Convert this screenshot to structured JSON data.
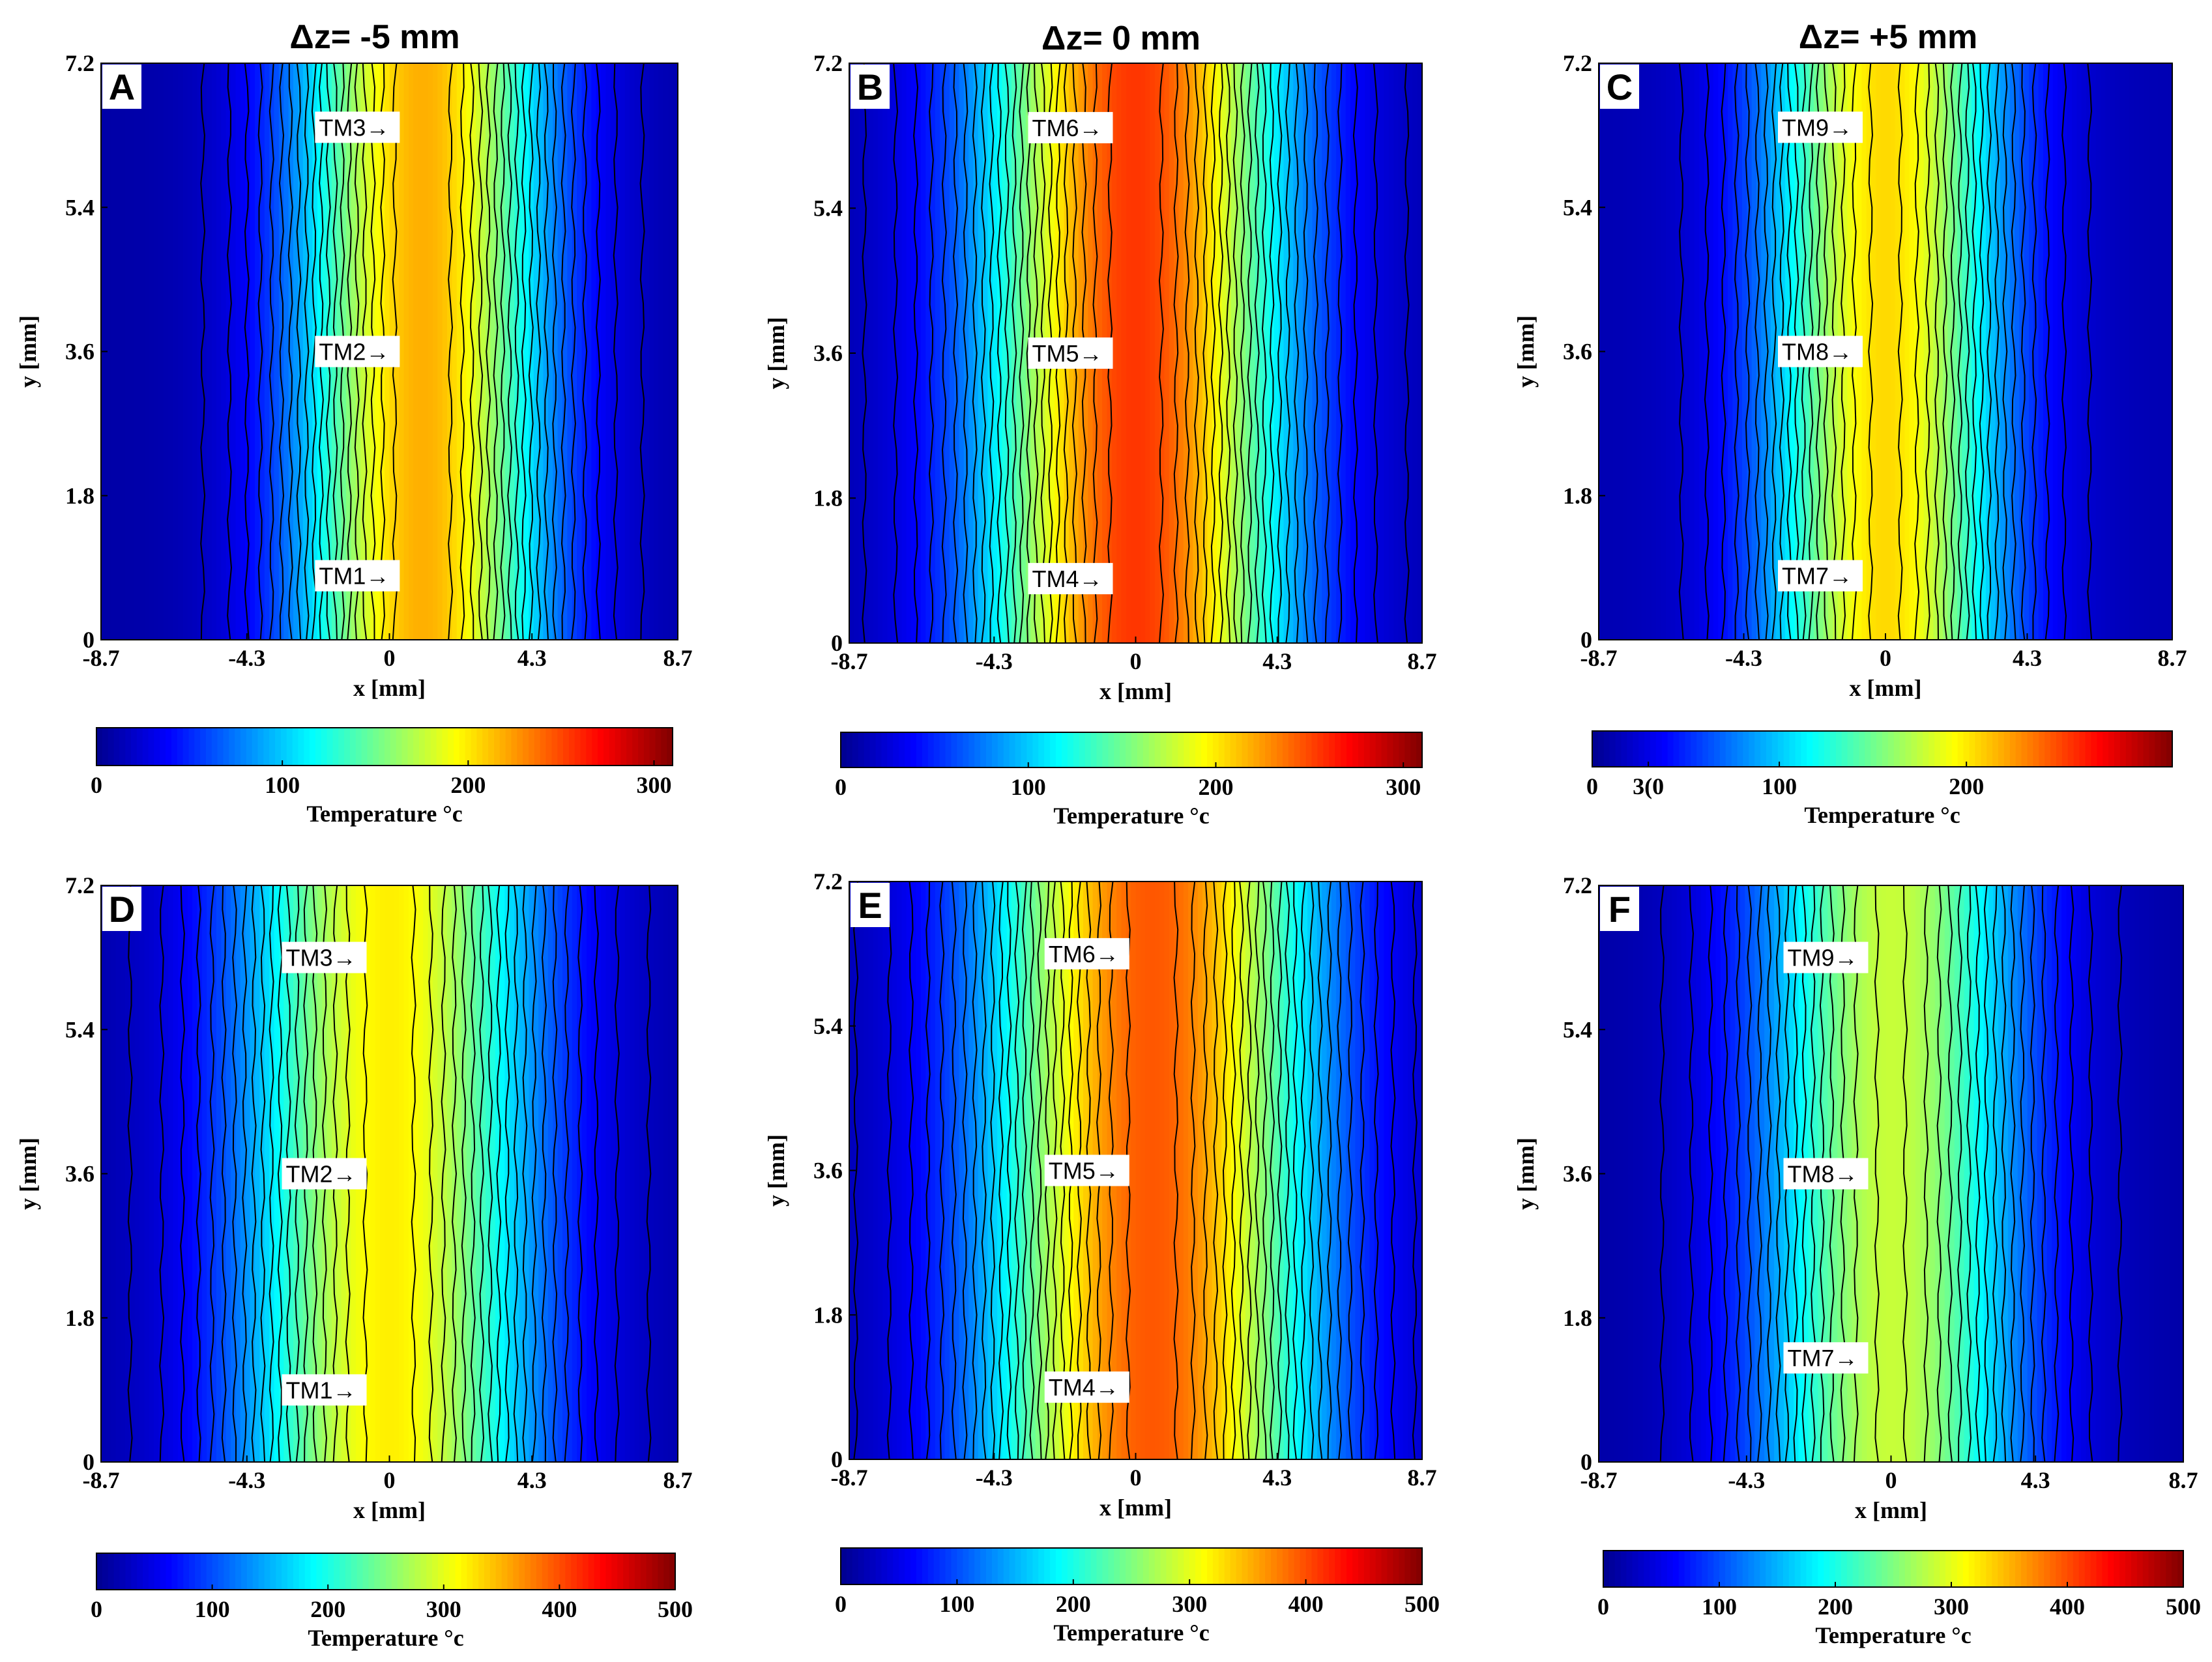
{
  "column_headers": [
    "Δz= -5 mm",
    "Δz= 0 mm",
    "Δz= +5 mm"
  ],
  "colors": {
    "jet": [
      "#00008f",
      "#0000ff",
      "#0080ff",
      "#00ffff",
      "#80ff80",
      "#ffff00",
      "#ff8000",
      "#ff0000",
      "#800000"
    ],
    "contour_line": "#000000"
  },
  "chart_data": [
    {
      "type": "heatmap",
      "panel": "A",
      "title": "Δz= -5 mm",
      "xlabel": "x [mm]",
      "ylabel": "y [mm]",
      "xticks": [
        "-8.7",
        "-4.3",
        "0",
        "4.3",
        "8.7"
      ],
      "yticks": [
        "0",
        "1.8",
        "3.6",
        "5.4",
        "7.2"
      ],
      "xlim": [
        -8.7,
        8.7
      ],
      "ylim": [
        0,
        7.2
      ],
      "colorbar": {
        "label": "Temperature °c",
        "ticks": [
          "0",
          "100",
          "200",
          "300"
        ],
        "range": [
          0,
          310
        ]
      },
      "peak_x": 1.0,
      "peak_value": 218,
      "edge_value": 8,
      "width": 3.8,
      "markers": [
        {
          "label": "TM1→",
          "y": 0.8
        },
        {
          "label": "TM2→",
          "y": 3.6
        },
        {
          "label": "TM3→",
          "y": 6.4
        }
      ]
    },
    {
      "type": "heatmap",
      "panel": "B",
      "title": "Δz= 0 mm",
      "xlabel": "x [mm]",
      "ylabel": "y [mm]",
      "xticks": [
        "-8.7",
        "-4.3",
        "0",
        "4.3",
        "8.7"
      ],
      "yticks": [
        "0",
        "1.8",
        "3.6",
        "5.4",
        "7.2"
      ],
      "xlim": [
        -8.7,
        8.7
      ],
      "ylim": [
        0,
        7.2
      ],
      "colorbar": {
        "label": "Temperature °c",
        "ticks": [
          "0",
          "100",
          "200",
          "300"
        ],
        "range": [
          0,
          310
        ]
      },
      "peak_x": 0.0,
      "peak_value": 255,
      "edge_value": 8,
      "width": 4.6,
      "markers": [
        {
          "label": "TM4→",
          "y": 0.8
        },
        {
          "label": "TM5→",
          "y": 3.6
        },
        {
          "label": "TM6→",
          "y": 6.4
        }
      ]
    },
    {
      "type": "heatmap",
      "panel": "C",
      "title": "Δz= +5 mm",
      "xlabel": "x [mm]",
      "ylabel": "y [mm]",
      "xticks": [
        "-8.7",
        "-4.3",
        "0",
        "4.3",
        "8.7"
      ],
      "yticks": [
        "0",
        "1.8",
        "3.6",
        "5.4",
        "7.2"
      ],
      "xlim": [
        -8.7,
        8.7
      ],
      "ylim": [
        0,
        7.2
      ],
      "colorbar": {
        "label": "Temperature °c",
        "ticks": [
          "0",
          "100",
          "200",
          "3(0"
        ],
        "range": [
          0,
          310
        ]
      },
      "peak_x": 0.0,
      "peak_value": 205,
      "edge_value": 12,
      "width": 3.6,
      "markers": [
        {
          "label": "TM7→",
          "y": 0.8
        },
        {
          "label": "TM8→",
          "y": 3.6
        },
        {
          "label": "TM9→",
          "y": 6.4
        }
      ]
    },
    {
      "type": "heatmap",
      "panel": "D",
      "title": "",
      "xlabel": "x [mm]",
      "ylabel": "y [mm]",
      "xticks": [
        "-8.7",
        "-4.3",
        "0",
        "4.3",
        "8.7"
      ],
      "yticks": [
        "0",
        "1.8",
        "3.6",
        "5.4",
        "7.2"
      ],
      "xlim": [
        -8.7,
        8.7
      ],
      "ylim": [
        0,
        7.2
      ],
      "colorbar": {
        "label": "Temperature °c",
        "ticks": [
          "0",
          "100",
          "200",
          "300",
          "400",
          "500"
        ],
        "range": [
          0,
          500
        ]
      },
      "peak_x": 0.0,
      "peak_value": 320,
      "edge_value": 12,
      "width": 4.5,
      "markers": [
        {
          "label": "TM1→",
          "y": 0.9
        },
        {
          "label": "TM2→",
          "y": 3.6
        },
        {
          "label": "TM3→",
          "y": 6.3
        }
      ]
    },
    {
      "type": "heatmap",
      "panel": "E",
      "title": "",
      "xlabel": "x [mm]",
      "ylabel": "y [mm]",
      "xticks": [
        "-8.7",
        "-4.3",
        "0",
        "4.3",
        "8.7"
      ],
      "yticks": [
        "0",
        "1.8",
        "3.6",
        "5.4",
        "7.2"
      ],
      "xlim": [
        -8.7,
        8.7
      ],
      "ylim": [
        0,
        7.2
      ],
      "colorbar": {
        "label": "Temperature °c",
        "ticks": [
          "0",
          "100",
          "200",
          "300",
          "400",
          "500"
        ],
        "range": [
          0,
          500
        ]
      },
      "peak_x": 0.5,
      "peak_value": 395,
      "edge_value": 12,
      "width": 5.0,
      "markers": [
        {
          "label": "TM4→",
          "y": 0.9
        },
        {
          "label": "TM5→",
          "y": 3.6
        },
        {
          "label": "TM6→",
          "y": 6.3
        }
      ]
    },
    {
      "type": "heatmap",
      "panel": "F",
      "title": "",
      "xlabel": "x [mm]",
      "ylabel": "y [mm]",
      "xticks": [
        "-8.7",
        "-4.3",
        "0",
        "4.3",
        "8.7"
      ],
      "yticks": [
        "0",
        "1.8",
        "3.6",
        "5.4",
        "7.2"
      ],
      "xlim": [
        -8.7,
        8.7
      ],
      "ylim": [
        0,
        7.2
      ],
      "colorbar": {
        "label": "Temperature °c",
        "ticks": [
          "0",
          "100",
          "200",
          "300",
          "400",
          "500"
        ],
        "range": [
          0,
          500
        ]
      },
      "peak_x": 0.0,
      "peak_value": 285,
      "edge_value": 12,
      "width": 4.0,
      "markers": [
        {
          "label": "TM7→",
          "y": 1.3
        },
        {
          "label": "TM8→",
          "y": 3.6
        },
        {
          "label": "TM9→",
          "y": 6.3
        }
      ]
    }
  ]
}
